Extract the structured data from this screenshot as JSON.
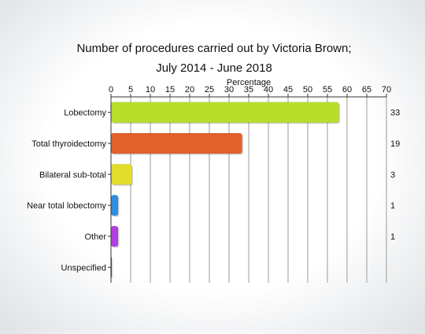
{
  "chart_data": {
    "type": "bar",
    "orientation": "horizontal",
    "title": [
      "Number of procedures carried out by Victoria Brown;",
      "July 2014 - June 2018"
    ],
    "xlabel": "Percentage",
    "xlim": [
      0,
      70
    ],
    "xticks": [
      "0",
      "5",
      "10",
      "15",
      "20",
      "25",
      "30",
      "35",
      "40",
      "45",
      "50",
      "55",
      "60",
      "65",
      "70"
    ],
    "grid": true,
    "categories": [
      "Lobectomy",
      "Total thyroidectomy",
      "Bilateral sub-total",
      "Near total lobectomy",
      "Other",
      "Unspecified"
    ],
    "values": [
      57.9,
      33.3,
      5.3,
      1.8,
      1.8,
      0.2
    ],
    "counts": [
      "33",
      "19",
      "3",
      "1",
      "1",
      ""
    ],
    "colors": [
      "#b8de2a",
      "#e2612a",
      "#e2dc2c",
      "#2f8fe0",
      "#b13ee0",
      "#b22222"
    ]
  }
}
